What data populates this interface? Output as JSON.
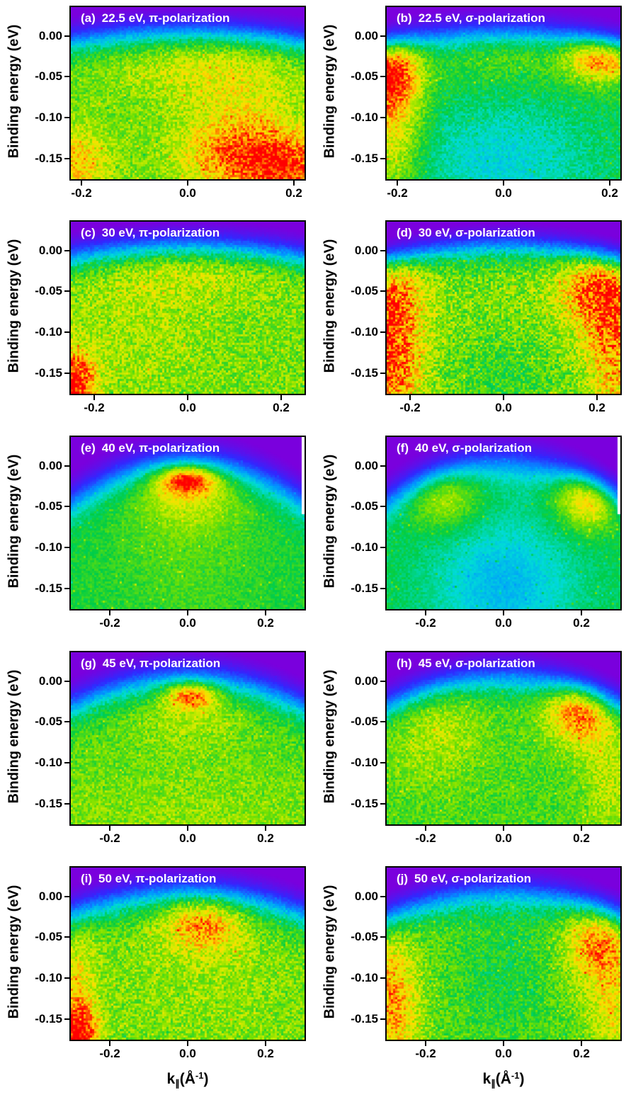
{
  "figure": {
    "background": "#ffffff",
    "frame_color": "#000000",
    "text_color": "#000000",
    "panel_label_color": "#ffffff",
    "y_axis": {
      "label": "Binding energy (eV)",
      "tick_labels": [
        "0.00",
        "-0.05",
        "-0.10",
        "-0.15"
      ],
      "tick_values": [
        0,
        -0.05,
        -0.1,
        -0.15
      ]
    },
    "x_axis": {
      "label_plain": "k∥(Å⁻¹)",
      "label_base": "k",
      "label_sub": "∥",
      "label_mid": "(Å",
      "label_sup": "-1",
      "label_end": ")",
      "tick_labels": [
        "-0.2",
        "0.0",
        "0.2"
      ],
      "tick_values": [
        -0.2,
        0.0,
        0.2
      ]
    },
    "colormap": {
      "description": "rainbow: purple = low intensity, red = high intensity",
      "stops": [
        {
          "t": 0.0,
          "rgb": [
            122,
            0,
            221
          ]
        },
        {
          "t": 0.13,
          "rgb": [
            48,
            40,
            255
          ]
        },
        {
          "t": 0.27,
          "rgb": [
            0,
            150,
            255
          ]
        },
        {
          "t": 0.38,
          "rgb": [
            0,
            220,
            215
          ]
        },
        {
          "t": 0.5,
          "rgb": [
            0,
            205,
            70
          ]
        },
        {
          "t": 0.62,
          "rgb": [
            120,
            225,
            0
          ]
        },
        {
          "t": 0.72,
          "rgb": [
            215,
            235,
            0
          ]
        },
        {
          "t": 0.8,
          "rgb": [
            255,
            220,
            0
          ]
        },
        {
          "t": 0.88,
          "rgb": [
            255,
            140,
            0
          ]
        },
        {
          "t": 1.0,
          "rgb": [
            255,
            0,
            0
          ]
        }
      ]
    }
  },
  "chart_data": [
    {
      "letter": "(a)",
      "title": "22.5 eV, π-polarization",
      "type": "heatmap",
      "photon_energy_eV": 22.5,
      "polarization": "π",
      "fermi_level_eV": 0.0,
      "xlim": [
        -0.22,
        0.22
      ],
      "ylim": [
        -0.175,
        0.035
      ],
      "model": {
        "seed": 101,
        "base": 0.6,
        "noise": 0.13,
        "edge": {
          "c0": 0.004,
          "c2": 0.25,
          "w": 0.012
        },
        "hotspots": [
          {
            "k": 0.12,
            "E": -0.15,
            "sk": 0.085,
            "sE": 0.032,
            "amp": 0.3
          },
          {
            "k": 0.2,
            "E": -0.165,
            "sk": 0.05,
            "sE": 0.025,
            "amp": 0.18
          },
          {
            "k": -0.21,
            "E": -0.155,
            "sk": 0.045,
            "sE": 0.03,
            "amp": 0.22
          },
          {
            "k": 0.03,
            "E": -0.035,
            "sk": 0.13,
            "sE": 0.03,
            "amp": 0.12
          },
          {
            "k": 0.1,
            "E": -0.1,
            "sk": 0.08,
            "sE": 0.05,
            "amp": 0.1
          }
        ],
        "white_gap_right": false
      }
    },
    {
      "letter": "(b)",
      "title": "22.5 eV, σ-polarization",
      "type": "heatmap",
      "photon_energy_eV": 22.5,
      "polarization": "σ",
      "fermi_level_eV": 0.0,
      "xlim": [
        -0.22,
        0.22
      ],
      "ylim": [
        -0.175,
        0.035
      ],
      "model": {
        "seed": 202,
        "base": 0.52,
        "noise": 0.12,
        "edge": {
          "c0": 0.004,
          "c2": 0.35,
          "w": 0.012
        },
        "hotspots": [
          {
            "k": -0.215,
            "E": -0.035,
            "sk": 0.04,
            "sE": 0.04,
            "amp": 0.55
          },
          {
            "k": 0.19,
            "E": -0.022,
            "sk": 0.05,
            "sE": 0.022,
            "amp": 0.5
          },
          {
            "k": -0.21,
            "E": -0.125,
            "sk": 0.04,
            "sE": 0.05,
            "amp": 0.22
          },
          {
            "k": 0.0,
            "E": -0.15,
            "sk": 0.13,
            "sE": 0.05,
            "amp": -0.15
          },
          {
            "k": 0.0,
            "E": -0.02,
            "sk": 0.09,
            "sE": 0.022,
            "amp": 0.1
          }
        ],
        "white_gap_right": false
      }
    },
    {
      "letter": "(c)",
      "title": "30 eV, π-polarization",
      "type": "heatmap",
      "photon_energy_eV": 30,
      "polarization": "π",
      "fermi_level_eV": 0.0,
      "xlim": [
        -0.25,
        0.25
      ],
      "ylim": [
        -0.175,
        0.035
      ],
      "model": {
        "seed": 303,
        "base": 0.62,
        "noise": 0.15,
        "edge": {
          "c0": 0.004,
          "c2": 0.22,
          "w": 0.012
        },
        "hotspots": [
          {
            "k": -0.245,
            "E": -0.16,
            "sk": 0.035,
            "sE": 0.028,
            "amp": 0.4
          },
          {
            "k": 0.02,
            "E": -0.022,
            "sk": 0.15,
            "sE": 0.025,
            "amp": 0.1
          },
          {
            "k": -0.1,
            "E": -0.08,
            "sk": 0.1,
            "sE": 0.06,
            "amp": 0.05
          }
        ],
        "white_gap_right": false
      }
    },
    {
      "letter": "(d)",
      "title": "30 eV, σ-polarization",
      "type": "heatmap",
      "photon_energy_eV": 30,
      "polarization": "σ",
      "fermi_level_eV": 0.0,
      "xlim": [
        -0.25,
        0.25
      ],
      "ylim": [
        -0.175,
        0.035
      ],
      "model": {
        "seed": 404,
        "base": 0.63,
        "noise": 0.17,
        "edge": {
          "c0": 0.004,
          "c2": 0.3,
          "w": 0.011
        },
        "hotspots": [
          {
            "k": -0.245,
            "E": -0.05,
            "sk": 0.05,
            "sE": 0.05,
            "amp": 0.3
          },
          {
            "k": -0.245,
            "E": -0.145,
            "sk": 0.05,
            "sE": 0.045,
            "amp": 0.28
          },
          {
            "k": 0.21,
            "E": -0.04,
            "sk": 0.06,
            "sE": 0.04,
            "amp": 0.35
          },
          {
            "k": 0.24,
            "E": -0.125,
            "sk": 0.045,
            "sE": 0.05,
            "amp": 0.22
          },
          {
            "k": 0.0,
            "E": -0.155,
            "sk": 0.1,
            "sE": 0.04,
            "amp": -0.08
          }
        ],
        "white_gap_right": false
      }
    },
    {
      "letter": "(e)",
      "title": "40 eV, π-polarization",
      "type": "heatmap",
      "photon_energy_eV": 40,
      "polarization": "π",
      "fermi_level_eV": 0.0,
      "xlim": [
        -0.3,
        0.3
      ],
      "ylim": [
        -0.175,
        0.035
      ],
      "model": {
        "seed": 505,
        "base": 0.52,
        "noise": 0.08,
        "edge": {
          "c0": 0.004,
          "c2": 0.55,
          "w": 0.014
        },
        "hotspots": [
          {
            "k": 0.0,
            "E": -0.015,
            "sk": 0.055,
            "sE": 0.013,
            "amp": 0.55
          },
          {
            "k": 0.0,
            "E": -0.032,
            "sk": 0.1,
            "sE": 0.03,
            "amp": 0.18
          },
          {
            "k": 0.0,
            "E": -0.1,
            "sk": 0.13,
            "sE": 0.08,
            "amp": 0.06
          }
        ],
        "white_gap_right": true
      }
    },
    {
      "letter": "(f)",
      "title": "40 eV, σ-polarization",
      "type": "heatmap",
      "photon_energy_eV": 40,
      "polarization": "σ",
      "fermi_level_eV": 0.0,
      "xlim": [
        -0.3,
        0.3
      ],
      "ylim": [
        -0.175,
        0.035
      ],
      "model": {
        "seed": 606,
        "base": 0.5,
        "noise": 0.08,
        "edge": {
          "c0": 0.004,
          "c2": 0.55,
          "w": 0.014
        },
        "hotspots": [
          {
            "k": 0.23,
            "E": -0.03,
            "sk": 0.06,
            "sE": 0.028,
            "amp": 0.52
          },
          {
            "k": -0.16,
            "E": -0.03,
            "sk": 0.07,
            "sE": 0.03,
            "amp": 0.26
          },
          {
            "k": 0.0,
            "E": -0.145,
            "sk": 0.13,
            "sE": 0.06,
            "amp": -0.18
          }
        ],
        "white_gap_right": true
      }
    },
    {
      "letter": "(g)",
      "title": "45 eV, π-polarization",
      "type": "heatmap",
      "photon_energy_eV": 45,
      "polarization": "π",
      "fermi_level_eV": 0.0,
      "xlim": [
        -0.3,
        0.3
      ],
      "ylim": [
        -0.175,
        0.035
      ],
      "model": {
        "seed": 707,
        "base": 0.58,
        "noise": 0.12,
        "edge": {
          "c0": 0.004,
          "c2": 0.4,
          "w": 0.013
        },
        "hotspots": [
          {
            "k": 0.01,
            "E": -0.016,
            "sk": 0.045,
            "sE": 0.012,
            "amp": 0.45
          },
          {
            "k": 0.0,
            "E": -0.04,
            "sk": 0.1,
            "sE": 0.03,
            "amp": 0.1
          },
          {
            "k": 0.0,
            "E": -0.165,
            "sk": 0.3,
            "sE": 0.05,
            "amp": 0.06
          }
        ],
        "white_gap_right": false
      }
    },
    {
      "letter": "(h)",
      "title": "45 eV, σ-polarization",
      "type": "heatmap",
      "photon_energy_eV": 45,
      "polarization": "σ",
      "fermi_level_eV": 0.0,
      "xlim": [
        -0.3,
        0.3
      ],
      "ylim": [
        -0.175,
        0.035
      ],
      "model": {
        "seed": 808,
        "base": 0.57,
        "noise": 0.12,
        "edge": {
          "c0": 0.004,
          "c2": 0.4,
          "w": 0.013
        },
        "hotspots": [
          {
            "k": 0.2,
            "E": -0.03,
            "sk": 0.06,
            "sE": 0.03,
            "amp": 0.45
          },
          {
            "k": -0.18,
            "E": -0.05,
            "sk": 0.09,
            "sE": 0.05,
            "amp": 0.13
          },
          {
            "k": 0.27,
            "E": -0.12,
            "sk": 0.05,
            "sE": 0.05,
            "amp": 0.12
          }
        ],
        "white_gap_right": false
      }
    },
    {
      "letter": "(i)",
      "title": "50 eV, π-polarization",
      "type": "heatmap",
      "photon_energy_eV": 50,
      "polarization": "π",
      "fermi_level_eV": 0.0,
      "xlim": [
        -0.3,
        0.3
      ],
      "ylim": [
        -0.175,
        0.035
      ],
      "model": {
        "seed": 909,
        "base": 0.6,
        "noise": 0.14,
        "edge": {
          "c0": 0.004,
          "c2": 0.3,
          "w": 0.013
        },
        "hotspots": [
          {
            "k": 0.04,
            "E": -0.03,
            "sk": 0.07,
            "sE": 0.025,
            "amp": 0.3
          },
          {
            "k": -0.28,
            "E": -0.165,
            "sk": 0.035,
            "sE": 0.025,
            "amp": 0.4
          },
          {
            "k": -0.29,
            "E": -0.1,
            "sk": 0.04,
            "sE": 0.05,
            "amp": 0.15
          },
          {
            "k": 0.05,
            "E": -0.1,
            "sk": 0.18,
            "sE": 0.07,
            "amp": 0.05
          }
        ],
        "white_gap_right": false
      }
    },
    {
      "letter": "(j)",
      "title": "50 eV, σ-polarization",
      "type": "heatmap",
      "photon_energy_eV": 50,
      "polarization": "σ",
      "fermi_level_eV": 0.0,
      "xlim": [
        -0.3,
        0.3
      ],
      "ylim": [
        -0.175,
        0.035
      ],
      "model": {
        "seed": 1010,
        "base": 0.59,
        "noise": 0.14,
        "edge": {
          "c0": 0.004,
          "c2": 0.35,
          "w": 0.013
        },
        "hotspots": [
          {
            "k": 0.25,
            "E": -0.05,
            "sk": 0.06,
            "sE": 0.04,
            "amp": 0.35
          },
          {
            "k": -0.29,
            "E": -0.13,
            "sk": 0.05,
            "sE": 0.06,
            "amp": 0.28
          },
          {
            "k": 0.28,
            "E": -0.145,
            "sk": 0.04,
            "sE": 0.04,
            "amp": 0.15
          },
          {
            "k": 0.0,
            "E": -0.1,
            "sk": 0.09,
            "sE": 0.06,
            "amp": -0.08
          }
        ],
        "white_gap_right": false
      }
    }
  ]
}
